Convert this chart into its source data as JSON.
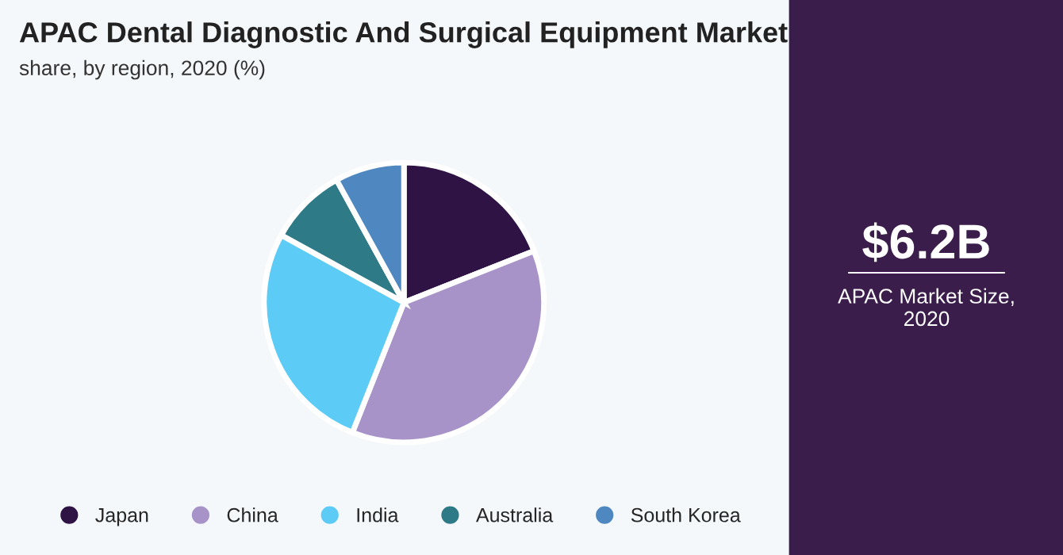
{
  "chart_data": {
    "type": "pie",
    "title": "APAC Dental Diagnostic And Surgical Equipment Market",
    "subtitle": "share, by region, 2020 (%)",
    "categories": [
      "Japan",
      "China",
      "India",
      "Australia",
      "South Korea"
    ],
    "values": [
      19,
      37,
      27,
      9,
      8
    ],
    "colors": [
      "#2e1344",
      "#a793c8",
      "#5ccbf5",
      "#2e7a87",
      "#4f88c0"
    ],
    "legend": "bottom",
    "annotations": [
      "$6.2B",
      "APAC Market Size,\n2020"
    ]
  }
}
